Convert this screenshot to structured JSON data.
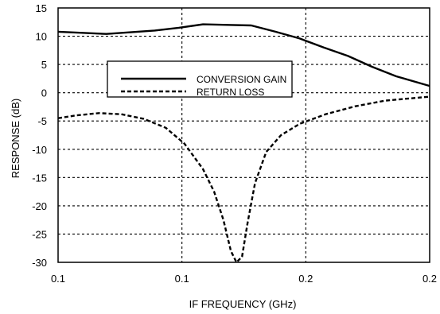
{
  "chart_data": {
    "type": "line",
    "title": "",
    "xlabel": "IF FREQUENCY (GHz)",
    "ylabel": "RESPONSE (dB)",
    "ylim": [
      -30,
      15
    ],
    "y_ticks": [
      15,
      10,
      5,
      0,
      -5,
      -10,
      -15,
      -20,
      -25,
      -30
    ],
    "x_tick_labels": [
      "0.1",
      "0.1",
      "0.2",
      "0.2"
    ],
    "grid": true,
    "legend_position": "upper-left-center",
    "series": [
      {
        "name": "CONVERSION GAIN",
        "style": "solid",
        "x_frac": [
          0.0,
          0.065,
          0.13,
          0.195,
          0.26,
          0.325,
          0.39,
          0.455,
          0.52,
          0.585,
          0.65,
          0.715,
          0.78,
          0.845,
          0.91,
          1.0
        ],
        "values": [
          10.8,
          10.6,
          10.4,
          10.7,
          11.0,
          11.5,
          12.1,
          12.0,
          11.9,
          10.8,
          9.6,
          8.0,
          6.5,
          4.6,
          2.9,
          1.2
        ]
      },
      {
        "name": "RETURN LOSS",
        "style": "dashed",
        "x_frac": [
          0.0,
          0.05,
          0.11,
          0.17,
          0.23,
          0.29,
          0.34,
          0.39,
          0.42,
          0.445,
          0.465,
          0.48,
          0.495,
          0.51,
          0.53,
          0.56,
          0.6,
          0.65,
          0.72,
          0.8,
          0.88,
          1.0
        ],
        "values": [
          -4.5,
          -4.0,
          -3.6,
          -3.8,
          -4.6,
          -6.2,
          -9.0,
          -13.5,
          -17.5,
          -22.5,
          -28.0,
          -30.0,
          -29.0,
          -23.0,
          -16.0,
          -10.5,
          -7.5,
          -5.5,
          -3.8,
          -2.4,
          -1.4,
          -0.7
        ]
      }
    ]
  }
}
